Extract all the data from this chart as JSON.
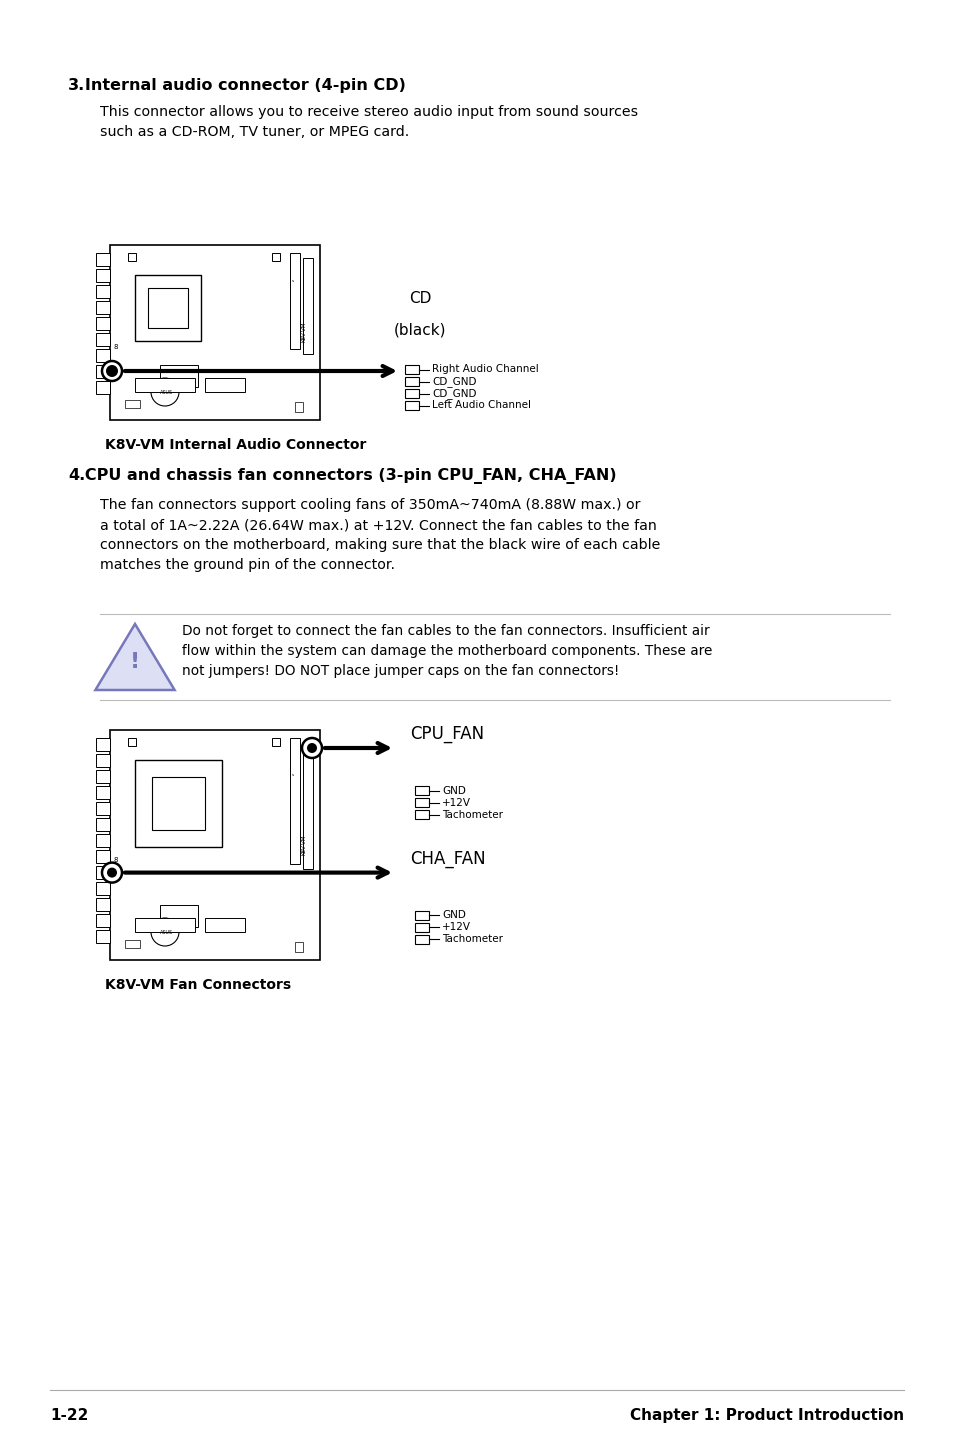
{
  "bg_color": "#ffffff",
  "text_color": "#000000",
  "section3_num": "3.",
  "section3_title": "   Internal audio connector (4-pin CD)",
  "section3_body": "This connector allows you to receive stereo audio input from sound sources\nsuch as a CD-ROM, TV tuner, or MPEG card.",
  "section3_caption": "K8V-VM Internal Audio Connector",
  "cd_label_line1": "CD",
  "cd_label_line2": "(black)",
  "cd_pins": [
    "Right Audio Channel",
    "CD_GND",
    "CD_GND",
    "Left Audio Channel"
  ],
  "section4_num": "4.",
  "section4_title": "   CPU and chassis fan connectors (3-pin CPU_FAN, CHA_FAN)",
  "section4_body_line1": "The fan connectors support cooling fans of 350mA~740mA (8.88W max.) or",
  "section4_body_line2": "a total of 1A~2.22A (26.64W max.) at +12V. Connect the fan cables to the fan",
  "section4_body_line3": "connectors on the motherboard, making sure that the black wire of each cable",
  "section4_body_line4": "matches the ground pin of the connector.",
  "warning_line1": "Do not forget to connect the fan cables to the fan connectors. Insufficient air",
  "warning_line2": "flow within the system can damage the motherboard components. These are",
  "warning_line3": "not jumpers! DO NOT place jumper caps on the fan connectors!",
  "cpu_fan_label": "CPU_FAN",
  "cpu_fan_pins": [
    "GND",
    "+12V",
    "Tachometer"
  ],
  "cha_fan_label": "CHA_FAN",
  "cha_fan_pins": [
    "GND",
    "+12V",
    "Tachometer"
  ],
  "section4_caption": "K8V-VM Fan Connectors",
  "footer_left": "1-22",
  "footer_right": "Chapter 1: Product Introduction",
  "tri_edge_color": "#7777bb",
  "tri_face_color": "#dde0f5",
  "tri_text_color": "#7777bb"
}
